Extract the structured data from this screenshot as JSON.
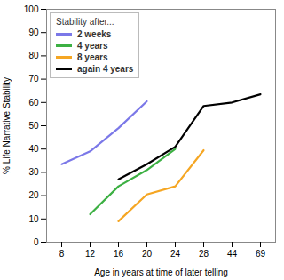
{
  "chart_data": {
    "type": "line",
    "x_label": "Age in years at time of later telling",
    "y_label": "% Life Narrative Stability",
    "legend_title": "Stability after...",
    "legend": "top-left",
    "categories": [
      "8",
      "12",
      "16",
      "20",
      "24",
      "28",
      "44",
      "69"
    ],
    "ylim": [
      0,
      100
    ],
    "yticks": [
      0,
      10,
      20,
      30,
      40,
      50,
      60,
      70,
      80,
      90,
      100
    ],
    "grid": false,
    "series": [
      {
        "name": "2 weeks",
        "color": "#7b78e8",
        "values": [
          33.5,
          39,
          49,
          60.5,
          null,
          null,
          null,
          null
        ]
      },
      {
        "name": "4 years",
        "color": "#3cb043",
        "values": [
          null,
          12,
          24,
          31,
          40,
          null,
          null,
          null
        ]
      },
      {
        "name": "8 years",
        "color": "#f5a623",
        "values": [
          null,
          null,
          9,
          20.5,
          24,
          39.5,
          null,
          null
        ]
      },
      {
        "name": "again 4 years",
        "color": "#000000",
        "values": [
          null,
          null,
          27,
          33.5,
          41,
          58.5,
          60,
          63.5
        ]
      }
    ]
  }
}
